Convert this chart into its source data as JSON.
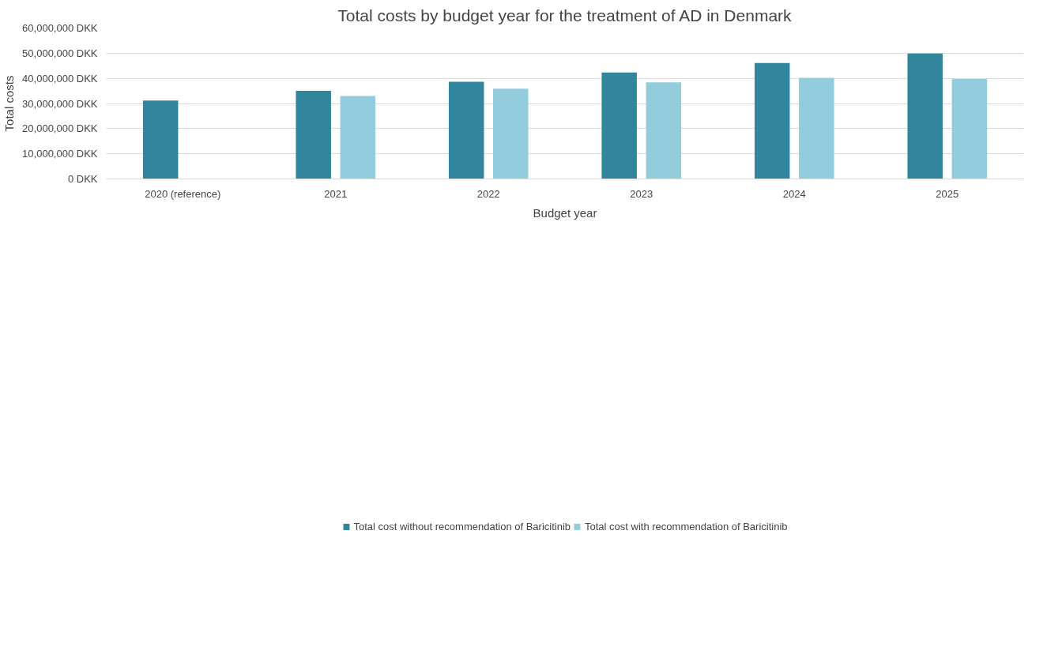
{
  "chart_data": {
    "type": "bar",
    "title": "Total costs by budget year for the treatment of AD in Denmark",
    "xlabel": "Budget year",
    "ylabel": "Total costs",
    "categories": [
      "2020 (reference)",
      "2021",
      "2022",
      "2023",
      "2024",
      "2025"
    ],
    "series": [
      {
        "name": "Total cost without recommendation of Baricitinib",
        "color": "#31859c",
        "values": [
          31200000,
          35000000,
          38600000,
          42300000,
          46100000,
          49900000
        ]
      },
      {
        "name": "Total cost with recommendation of Baricitinib",
        "color": "#93cddd",
        "values": [
          null,
          33000000,
          35900000,
          38400000,
          40200000,
          39700000
        ]
      }
    ],
    "ylim": [
      0,
      60000000
    ],
    "yticks": [
      {
        "value": 0,
        "label": "0 DKK"
      },
      {
        "value": 10000000,
        "label": "10,000,000 DKK"
      },
      {
        "value": 20000000,
        "label": "20,000,000 DKK"
      },
      {
        "value": 30000000,
        "label": "30,000,000 DKK"
      },
      {
        "value": 40000000,
        "label": "40,000,000 DKK"
      },
      {
        "value": 50000000,
        "label": "50,000,000 DKK"
      },
      {
        "value": 60000000,
        "label": "60,000,000 DKK"
      }
    ],
    "grid": "y",
    "legend": "bottom"
  }
}
